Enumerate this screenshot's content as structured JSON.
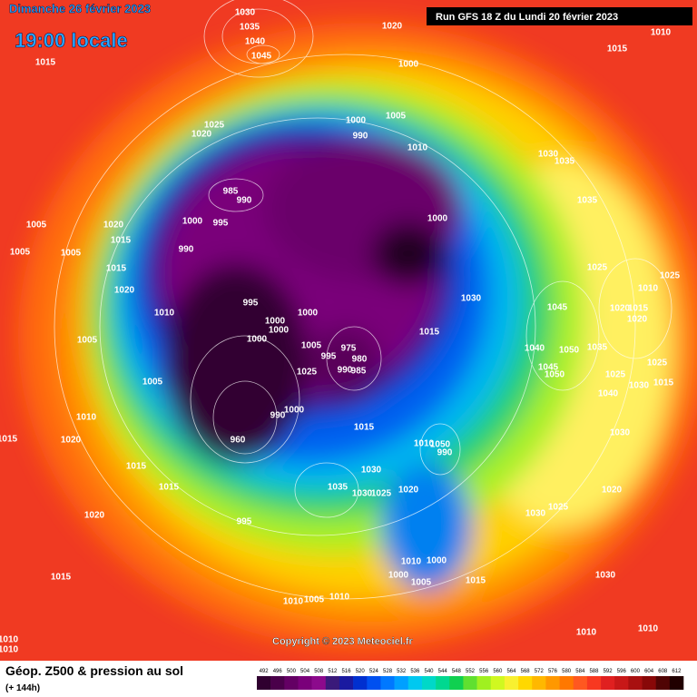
{
  "header": {
    "date": "Dimanche 26 février 2023",
    "time": "19:00 locale",
    "run": "Run GFS 18 Z du Lundi 20 février 2023"
  },
  "footer": {
    "title": "Géop. Z500 & pression au sol",
    "lead": "(+ 144h)",
    "copyright": "Copyright © 2023 Meteociel.fr"
  },
  "legend": {
    "labels": [
      492,
      496,
      500,
      504,
      508,
      512,
      516,
      520,
      524,
      528,
      532,
      536,
      540,
      544,
      548,
      552,
      556,
      560,
      564,
      568,
      572,
      576,
      580,
      584,
      588,
      592,
      596,
      600,
      604,
      608,
      612
    ],
    "colors": [
      "#300030",
      "#4a004a",
      "#640064",
      "#7a007a",
      "#8c0a8c",
      "#3a1a7a",
      "#1a1aa0",
      "#0030d0",
      "#0050f0",
      "#0078ff",
      "#00a0ff",
      "#00c8f0",
      "#00d8c8",
      "#00d890",
      "#10d050",
      "#60e030",
      "#a0f020",
      "#d0f820",
      "#f8f030",
      "#ffd800",
      "#ffb800",
      "#ff9800",
      "#ff7800",
      "#ff5820",
      "#f83820",
      "#e02020",
      "#c81818",
      "#a81010",
      "#880808",
      "#500404",
      "#200000"
    ]
  },
  "isobars": [
    1030,
    1035,
    1040,
    1045,
    1020,
    1015,
    1010,
    1015,
    1000,
    1025,
    1020,
    1000,
    990,
    1005,
    1010,
    1030,
    1035,
    985,
    990,
    1000,
    995,
    1005,
    1020,
    1015,
    990,
    1000,
    1005,
    1005,
    1035,
    1015,
    1020,
    1025,
    1025,
    1010,
    995,
    1010,
    1000,
    1030,
    1020,
    1015,
    1045,
    1020,
    1000,
    1000,
    1015,
    1005,
    1000,
    1005,
    975,
    995,
    990,
    980,
    1040,
    1050,
    1035,
    1025,
    985,
    1025,
    1045,
    1050,
    1025,
    1030,
    1015,
    1005,
    1040,
    1000,
    990,
    1010,
    1015,
    1030,
    1015,
    1020,
    1010,
    1050,
    990,
    960,
    1015,
    1030,
    1035,
    1030,
    1025,
    1020,
    1015,
    1020,
    995,
    1020,
    1030,
    1025,
    1030,
    1015,
    1010,
    1000,
    1000,
    1005,
    1015,
    1010,
    1005,
    1010,
    1010,
    1010,
    1010,
    1010
  ]
}
